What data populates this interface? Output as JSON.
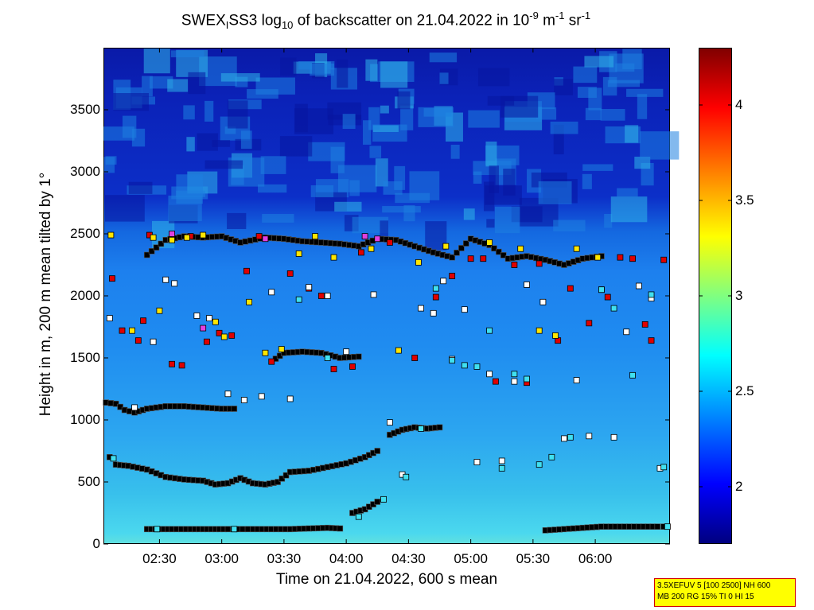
{
  "chart_data": {
    "type": "heatmap",
    "title": {
      "p1": "SWEX",
      "sub1": "I",
      "p2": "SS3 log",
      "sub2": "10",
      "p3": " of backscatter on 21.04.2022 in 10",
      "sup1": "-9",
      "p4": " m",
      "sup2": "-1",
      "p5": " sr",
      "sup3": "-1"
    },
    "xlabel": "Time on 21.04.2022, 600 s mean",
    "ylabel": "Height in m, 200 m mean tilted by 1°",
    "x_ticks": [
      {
        "label": "02:30",
        "h": 2.5
      },
      {
        "label": "03:00",
        "h": 3.0
      },
      {
        "label": "03:30",
        "h": 3.5
      },
      {
        "label": "04:00",
        "h": 4.0
      },
      {
        "label": "04:30",
        "h": 4.5
      },
      {
        "label": "05:00",
        "h": 5.0
      },
      {
        "label": "05:30",
        "h": 5.5
      },
      {
        "label": "06:00",
        "h": 6.0
      }
    ],
    "y_ticks": [
      {
        "label": "0",
        "v": 0
      },
      {
        "label": "500",
        "v": 500
      },
      {
        "label": "1000",
        "v": 1000
      },
      {
        "label": "1500",
        "v": 1500
      },
      {
        "label": "2000",
        "v": 2000
      },
      {
        "label": "2500",
        "v": 2500
      },
      {
        "label": "3000",
        "v": 3000
      },
      {
        "label": "3500",
        "v": 3500
      }
    ],
    "xlim": [
      2.05,
      6.6
    ],
    "ylim": [
      0,
      4000
    ],
    "colorbar": {
      "range": [
        1.7,
        4.3
      ],
      "ticks": [
        {
          "label": "2",
          "v": 2.0
        },
        {
          "label": "2.5",
          "v": 2.5
        },
        {
          "label": "3",
          "v": 3.0
        },
        {
          "label": "3.5",
          "v": 3.5
        },
        {
          "label": "4",
          "v": 4.0
        }
      ]
    },
    "layers": [
      {
        "name": "surface-layer-top",
        "color": "#000000",
        "points": [
          [
            2.4,
            120
          ],
          [
            2.5,
            120
          ],
          [
            2.6,
            120
          ],
          [
            2.75,
            120
          ],
          [
            2.85,
            120
          ],
          [
            2.95,
            120
          ],
          [
            3.05,
            120
          ],
          [
            3.25,
            120
          ],
          [
            3.4,
            120
          ],
          [
            3.55,
            120
          ],
          [
            3.7,
            125
          ],
          [
            3.85,
            130
          ],
          [
            3.95,
            125
          ]
        ]
      },
      {
        "name": "residual-layer-low",
        "color": "#000000",
        "points": [
          [
            2.1,
            700
          ],
          [
            2.15,
            640
          ],
          [
            2.25,
            630
          ],
          [
            2.4,
            600
          ],
          [
            2.55,
            540
          ],
          [
            2.7,
            520
          ],
          [
            2.85,
            510
          ],
          [
            2.95,
            480
          ],
          [
            3.05,
            490
          ],
          [
            3.15,
            530
          ],
          [
            3.25,
            490
          ],
          [
            3.35,
            480
          ],
          [
            3.45,
            500
          ],
          [
            3.55,
            580
          ],
          [
            3.7,
            590
          ],
          [
            3.85,
            620
          ],
          [
            4.0,
            650
          ],
          [
            4.15,
            700
          ],
          [
            4.25,
            750
          ]
        ]
      },
      {
        "name": "residual-layer-low-2",
        "color": "#000000",
        "points": [
          [
            4.05,
            250
          ],
          [
            4.15,
            280
          ],
          [
            4.25,
            340
          ],
          [
            4.3,
            360
          ]
        ]
      },
      {
        "name": "layer-1100",
        "color": "#000000",
        "points": [
          [
            2.07,
            1140
          ],
          [
            2.15,
            1130
          ],
          [
            2.22,
            1080
          ],
          [
            2.3,
            1060
          ],
          [
            2.4,
            1090
          ],
          [
            2.55,
            1110
          ],
          [
            2.7,
            1110
          ],
          [
            2.85,
            1100
          ],
          [
            3.0,
            1090
          ],
          [
            3.1,
            1090
          ]
        ]
      },
      {
        "name": "layer-900",
        "color": "#000000",
        "points": [
          [
            4.35,
            880
          ],
          [
            4.45,
            920
          ],
          [
            4.55,
            940
          ],
          [
            4.65,
            930
          ],
          [
            4.75,
            940
          ]
        ]
      },
      {
        "name": "layer-1450",
        "color": "#000000",
        "points": [
          [
            3.4,
            1470
          ],
          [
            3.5,
            1540
          ],
          [
            3.65,
            1550
          ],
          [
            3.8,
            1540
          ],
          [
            3.95,
            1500
          ],
          [
            4.1,
            1510
          ]
        ]
      },
      {
        "name": "aerosol-top",
        "color": "#000000",
        "points": [
          [
            2.4,
            2330
          ],
          [
            2.55,
            2450
          ],
          [
            2.7,
            2480
          ],
          [
            2.85,
            2470
          ],
          [
            3.0,
            2480
          ],
          [
            3.15,
            2430
          ],
          [
            3.35,
            2470
          ],
          [
            3.5,
            2460
          ],
          [
            3.65,
            2440
          ],
          [
            3.8,
            2430
          ],
          [
            3.95,
            2420
          ],
          [
            4.1,
            2400
          ],
          [
            4.25,
            2460
          ],
          [
            4.4,
            2450
          ],
          [
            4.55,
            2400
          ],
          [
            4.7,
            2350
          ],
          [
            4.85,
            2310
          ],
          [
            5.0,
            2460
          ],
          [
            5.15,
            2410
          ],
          [
            5.3,
            2300
          ],
          [
            5.45,
            2320
          ],
          [
            5.6,
            2290
          ],
          [
            5.75,
            2250
          ],
          [
            5.9,
            2300
          ],
          [
            6.05,
            2320
          ]
        ]
      },
      {
        "name": "layer-140-late",
        "color": "#000000",
        "points": [
          [
            5.6,
            110
          ],
          [
            5.75,
            120
          ],
          [
            5.9,
            130
          ],
          [
            6.05,
            140
          ],
          [
            6.2,
            140
          ],
          [
            6.35,
            140
          ],
          [
            6.5,
            140
          ],
          [
            6.55,
            140
          ]
        ]
      }
    ],
    "points": {
      "red": [
        [
          2.12,
          2140
        ],
        [
          2.2,
          1720
        ],
        [
          2.33,
          1640
        ],
        [
          2.37,
          1800
        ],
        [
          2.42,
          2490
        ],
        [
          2.6,
          1450
        ],
        [
          2.68,
          1440
        ],
        [
          2.75,
          2480
        ],
        [
          2.88,
          1630
        ],
        [
          2.98,
          1700
        ],
        [
          3.08,
          1680
        ],
        [
          3.2,
          2200
        ],
        [
          3.3,
          2480
        ],
        [
          3.4,
          1470
        ],
        [
          3.55,
          2180
        ],
        [
          3.7,
          2060
        ],
        [
          3.8,
          2000
        ],
        [
          3.9,
          1410
        ],
        [
          4.05,
          1430
        ],
        [
          4.12,
          2350
        ],
        [
          4.35,
          2430
        ],
        [
          4.55,
          1500
        ],
        [
          4.72,
          1990
        ],
        [
          4.85,
          2160
        ],
        [
          5.0,
          2300
        ],
        [
          5.1,
          2300
        ],
        [
          5.2,
          1310
        ],
        [
          5.35,
          2250
        ],
        [
          5.45,
          1300
        ],
        [
          5.55,
          2260
        ],
        [
          5.7,
          1640
        ],
        [
          5.8,
          2060
        ],
        [
          5.95,
          1780
        ],
        [
          6.1,
          1990
        ],
        [
          6.2,
          2310
        ],
        [
          6.3,
          2300
        ],
        [
          6.4,
          1770
        ],
        [
          6.45,
          1640
        ],
        [
          6.55,
          2290
        ]
      ],
      "yellow": [
        [
          2.11,
          2490
        ],
        [
          2.28,
          1720
        ],
        [
          2.45,
          2470
        ],
        [
          2.5,
          1880
        ],
        [
          2.6,
          2450
        ],
        [
          2.72,
          2470
        ],
        [
          2.85,
          2490
        ],
        [
          2.95,
          1790
        ],
        [
          3.02,
          1670
        ],
        [
          3.22,
          1950
        ],
        [
          3.35,
          1540
        ],
        [
          3.48,
          1570
        ],
        [
          3.62,
          2340
        ],
        [
          3.75,
          2480
        ],
        [
          3.9,
          2310
        ],
        [
          4.2,
          2380
        ],
        [
          4.42,
          1560
        ],
        [
          4.58,
          2270
        ],
        [
          4.8,
          2400
        ],
        [
          5.15,
          2430
        ],
        [
          5.4,
          2380
        ],
        [
          5.55,
          1720
        ],
        [
          5.68,
          1680
        ],
        [
          5.85,
          2380
        ],
        [
          6.02,
          2310
        ]
      ],
      "white": [
        [
          2.1,
          1820
        ],
        [
          2.3,
          1100
        ],
        [
          2.45,
          1630
        ],
        [
          2.55,
          2130
        ],
        [
          2.62,
          2100
        ],
        [
          2.8,
          1840
        ],
        [
          2.9,
          1820
        ],
        [
          3.05,
          1210
        ],
        [
          3.18,
          1160
        ],
        [
          3.32,
          1190
        ],
        [
          3.4,
          2030
        ],
        [
          3.55,
          1170
        ],
        [
          3.7,
          2070
        ],
        [
          3.85,
          2000
        ],
        [
          4.0,
          1550
        ],
        [
          4.22,
          2010
        ],
        [
          4.35,
          980
        ],
        [
          4.45,
          560
        ],
        [
          4.6,
          1900
        ],
        [
          4.7,
          1860
        ],
        [
          4.78,
          2120
        ],
        [
          4.85,
          1490
        ],
        [
          4.95,
          1890
        ],
        [
          5.05,
          660
        ],
        [
          5.15,
          1370
        ],
        [
          5.25,
          670
        ],
        [
          5.35,
          1310
        ],
        [
          5.45,
          2090
        ],
        [
          5.58,
          1950
        ],
        [
          5.75,
          850
        ],
        [
          5.85,
          1320
        ],
        [
          5.95,
          870
        ],
        [
          6.05,
          2050
        ],
        [
          6.15,
          860
        ],
        [
          6.25,
          1710
        ],
        [
          6.35,
          2080
        ],
        [
          6.45,
          1980
        ],
        [
          6.52,
          610
        ]
      ],
      "cyan": [
        [
          2.13,
          690
        ],
        [
          2.48,
          120
        ],
        [
          3.1,
          120
        ],
        [
          3.62,
          1970
        ],
        [
          3.85,
          1500
        ],
        [
          4.1,
          220
        ],
        [
          4.3,
          360
        ],
        [
          4.48,
          540
        ],
        [
          4.6,
          930
        ],
        [
          4.72,
          2060
        ],
        [
          4.85,
          1480
        ],
        [
          4.95,
          1440
        ],
        [
          5.05,
          1430
        ],
        [
          5.15,
          1720
        ],
        [
          5.25,
          610
        ],
        [
          5.35,
          1370
        ],
        [
          5.45,
          1330
        ],
        [
          5.55,
          640
        ],
        [
          5.65,
          700
        ],
        [
          5.8,
          860
        ],
        [
          6.05,
          2050
        ],
        [
          6.15,
          1900
        ],
        [
          6.3,
          1360
        ],
        [
          6.45,
          2010
        ],
        [
          6.55,
          620
        ],
        [
          6.58,
          140
        ]
      ],
      "magenta": [
        [
          2.6,
          2500
        ],
        [
          2.85,
          1740
        ],
        [
          3.35,
          2460
        ],
        [
          4.15,
          2480
        ],
        [
          4.25,
          2460
        ]
      ]
    }
  },
  "infobox": {
    "line1": "3.5XEFUV 5 [100 2500] NH 600",
    "line2": "MB 200 RG 15% TI 0 HI 15"
  }
}
